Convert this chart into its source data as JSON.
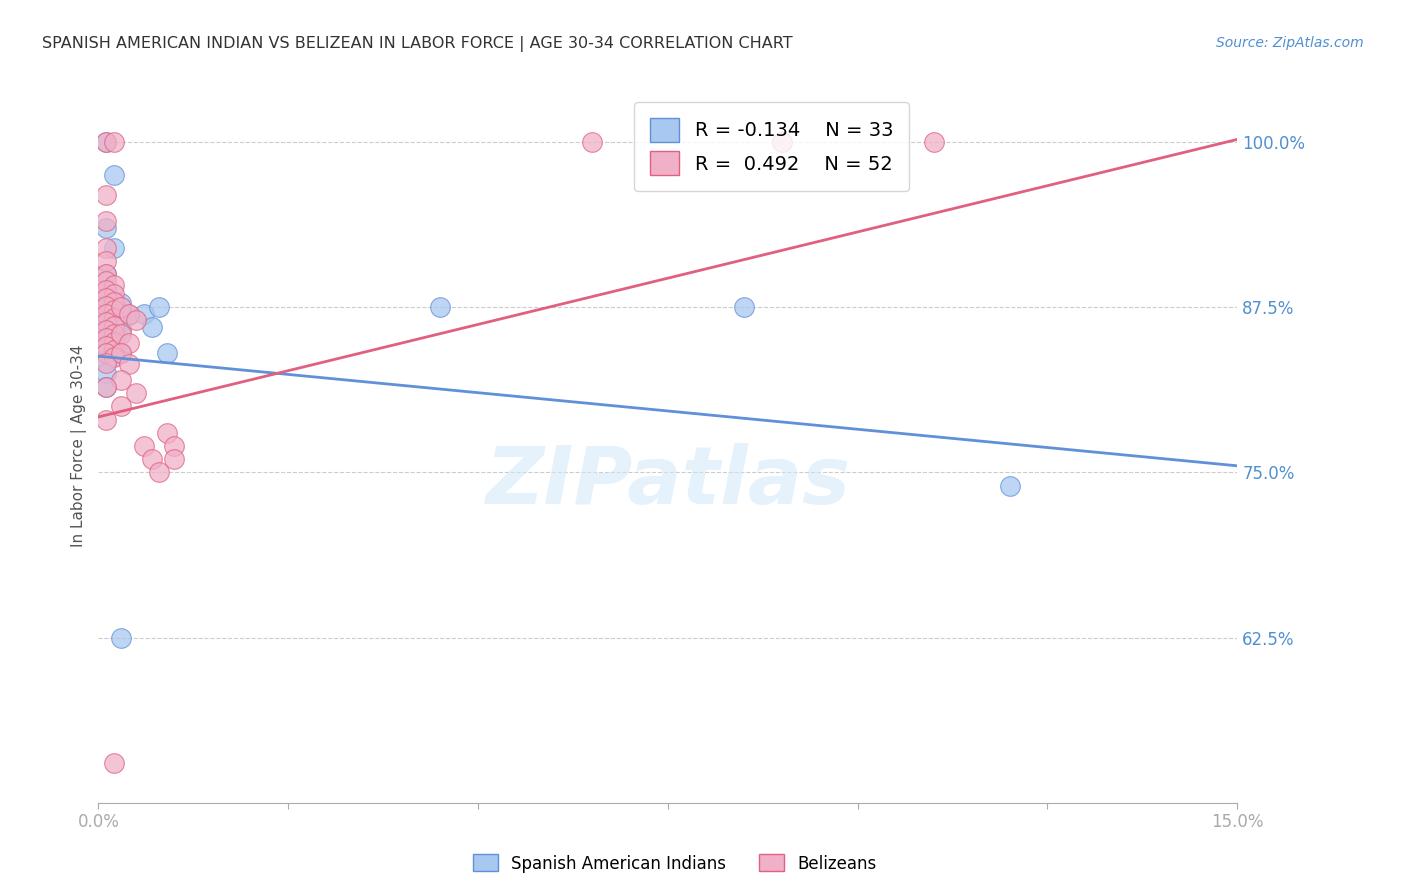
{
  "title": "SPANISH AMERICAN INDIAN VS BELIZEAN IN LABOR FORCE | AGE 30-34 CORRELATION CHART",
  "source": "Source: ZipAtlas.com",
  "ylabel": "In Labor Force | Age 30-34",
  "xlim": [
    0.0,
    0.15
  ],
  "ylim": [
    0.5,
    1.04
  ],
  "ytick_labels": [
    "100.0%",
    "87.5%",
    "75.0%",
    "62.5%"
  ],
  "ytick_values": [
    1.0,
    0.875,
    0.75,
    0.625
  ],
  "grid_color": "#cccccc",
  "background_color": "#ffffff",
  "blue_color": "#a8c8f0",
  "pink_color": "#f0b0c8",
  "blue_line_color": "#6090d8",
  "pink_line_color": "#e06080",
  "legend_R_blue": "-0.134",
  "legend_N_blue": "33",
  "legend_R_pink": "0.492",
  "legend_N_pink": "52",
  "label_blue": "Spanish American Indians",
  "label_pink": "Belizeans",
  "watermark": "ZIPatlas",
  "blue_scatter": [
    [
      0.001,
      1.0
    ],
    [
      0.002,
      0.975
    ],
    [
      0.001,
      0.935
    ],
    [
      0.002,
      0.92
    ],
    [
      0.001,
      0.9
    ],
    [
      0.001,
      0.885
    ],
    [
      0.002,
      0.88
    ],
    [
      0.003,
      0.878
    ],
    [
      0.001,
      0.875
    ],
    [
      0.002,
      0.873
    ],
    [
      0.003,
      0.871
    ],
    [
      0.004,
      0.869
    ],
    [
      0.001,
      0.868
    ],
    [
      0.002,
      0.866
    ],
    [
      0.003,
      0.864
    ],
    [
      0.001,
      0.862
    ],
    [
      0.002,
      0.86
    ],
    [
      0.003,
      0.858
    ],
    [
      0.001,
      0.856
    ],
    [
      0.002,
      0.854
    ],
    [
      0.001,
      0.85
    ],
    [
      0.002,
      0.848
    ],
    [
      0.001,
      0.845
    ],
    [
      0.002,
      0.843
    ],
    [
      0.001,
      0.84
    ],
    [
      0.002,
      0.838
    ],
    [
      0.001,
      0.835
    ],
    [
      0.001,
      0.825
    ],
    [
      0.001,
      0.815
    ],
    [
      0.003,
      0.84
    ],
    [
      0.006,
      0.87
    ],
    [
      0.007,
      0.86
    ],
    [
      0.008,
      0.875
    ],
    [
      0.009,
      0.84
    ],
    [
      0.045,
      0.875
    ],
    [
      0.085,
      0.875
    ],
    [
      0.12,
      0.74
    ],
    [
      0.003,
      0.625
    ]
  ],
  "pink_scatter": [
    [
      0.001,
      1.0
    ],
    [
      0.002,
      1.0
    ],
    [
      0.001,
      0.96
    ],
    [
      0.001,
      0.94
    ],
    [
      0.001,
      0.92
    ],
    [
      0.001,
      0.91
    ],
    [
      0.001,
      0.9
    ],
    [
      0.001,
      0.895
    ],
    [
      0.002,
      0.892
    ],
    [
      0.001,
      0.888
    ],
    [
      0.002,
      0.885
    ],
    [
      0.001,
      0.882
    ],
    [
      0.002,
      0.879
    ],
    [
      0.001,
      0.876
    ],
    [
      0.002,
      0.873
    ],
    [
      0.001,
      0.87
    ],
    [
      0.002,
      0.867
    ],
    [
      0.001,
      0.864
    ],
    [
      0.002,
      0.861
    ],
    [
      0.001,
      0.858
    ],
    [
      0.002,
      0.855
    ],
    [
      0.001,
      0.852
    ],
    [
      0.002,
      0.849
    ],
    [
      0.001,
      0.846
    ],
    [
      0.002,
      0.843
    ],
    [
      0.001,
      0.84
    ],
    [
      0.002,
      0.837
    ],
    [
      0.001,
      0.833
    ],
    [
      0.003,
      0.875
    ],
    [
      0.004,
      0.87
    ],
    [
      0.005,
      0.865
    ],
    [
      0.003,
      0.855
    ],
    [
      0.004,
      0.848
    ],
    [
      0.003,
      0.84
    ],
    [
      0.004,
      0.832
    ],
    [
      0.003,
      0.82
    ],
    [
      0.005,
      0.81
    ],
    [
      0.006,
      0.77
    ],
    [
      0.007,
      0.76
    ],
    [
      0.008,
      0.75
    ],
    [
      0.009,
      0.78
    ],
    [
      0.01,
      0.77
    ],
    [
      0.01,
      0.76
    ],
    [
      0.003,
      0.8
    ],
    [
      0.001,
      0.79
    ],
    [
      0.002,
      0.53
    ],
    [
      0.065,
      1.0
    ],
    [
      0.09,
      1.0
    ],
    [
      0.11,
      1.0
    ],
    [
      0.001,
      0.815
    ]
  ],
  "blue_trend_x": [
    0.0,
    0.15
  ],
  "blue_trend_y": [
    0.838,
    0.755
  ],
  "pink_trend_x": [
    0.0,
    0.15
  ],
  "pink_trend_y": [
    0.792,
    1.002
  ]
}
